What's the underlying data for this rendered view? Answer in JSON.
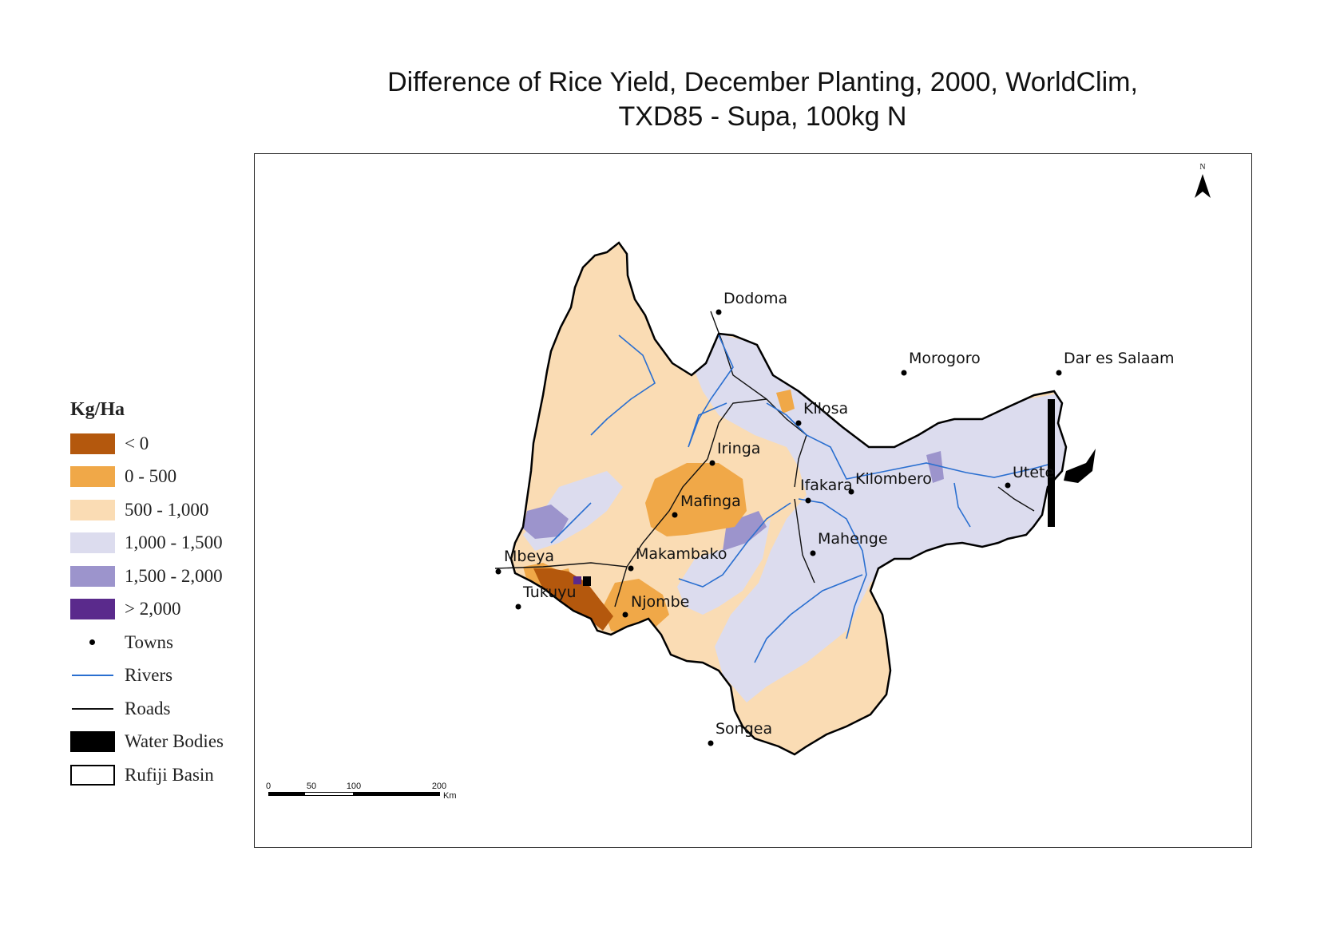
{
  "title_line1": "Difference of Rice Yield, December Planting, 2000, WorldClim,",
  "title_line2": "TXD85 - Supa, 100kg N",
  "legend": {
    "title": "Kg/Ha",
    "classes": [
      {
        "label": "< 0",
        "color": "#b4580d"
      },
      {
        "label": "0 - 500",
        "color": "#f0a848"
      },
      {
        "label": "500 - 1,000",
        "color": "#fadcb4"
      },
      {
        "label": "1,000 - 1,500",
        "color": "#dcdcee"
      },
      {
        "label": "1,500 - 2,000",
        "color": "#9c94cc"
      },
      {
        "label": "> 2,000",
        "color": "#5a2a8c"
      }
    ],
    "towns_label": "Towns",
    "rivers_label": "Rivers",
    "roads_label": "Roads",
    "water_label": "Water Bodies",
    "basin_label": "Rufiji Basin"
  },
  "towns": [
    "Dodoma",
    "Morogoro",
    "Dar es Salaam",
    "Kilosa",
    "Iringa",
    "Ifakara",
    "Kilombero",
    "Utete",
    "Mafinga",
    "Mahenge",
    "Mbeya",
    "Makambako",
    "Tukuyu",
    "Njombe",
    "Songea"
  ],
  "scale_bar": {
    "ticks": [
      "0",
      "50",
      "100",
      "200"
    ],
    "unit": "Km"
  },
  "north_label": "N",
  "colors": {
    "river": "#2a6fd0",
    "road": "#111111",
    "water": "#000000",
    "boundary": "#000000"
  }
}
